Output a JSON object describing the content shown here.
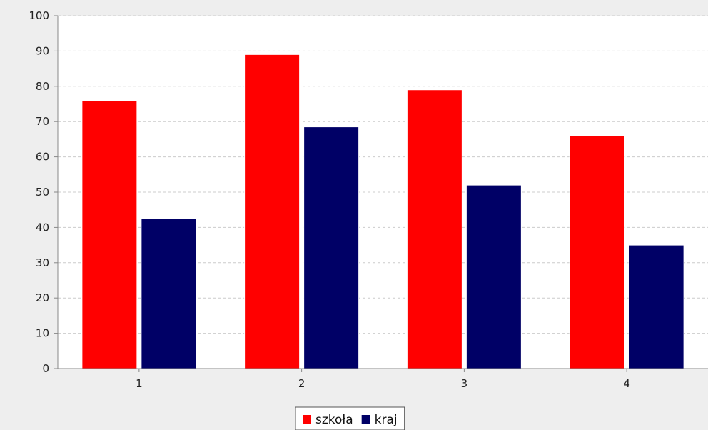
{
  "chart_data": {
    "type": "bar",
    "title": "",
    "xlabel": "",
    "ylabel": "",
    "categories": [
      "1",
      "2",
      "3",
      "4"
    ],
    "series": [
      {
        "name": "szkoła",
        "values": [
          76,
          89,
          79,
          66
        ],
        "color": "#ff0000"
      },
      {
        "name": "kraj",
        "values": [
          42.5,
          68.5,
          52,
          35
        ],
        "color": "#000066"
      }
    ],
    "ylim": [
      0,
      100
    ],
    "yticks": [
      0,
      10,
      20,
      30,
      40,
      50,
      60,
      70,
      80,
      90,
      100
    ],
    "grid": true,
    "legend_position": "bottom-center",
    "plot_background": "#ffffff",
    "outer_background": "#eeeeee",
    "gridline_color": "#cccccc",
    "axis_color": "#888888"
  }
}
